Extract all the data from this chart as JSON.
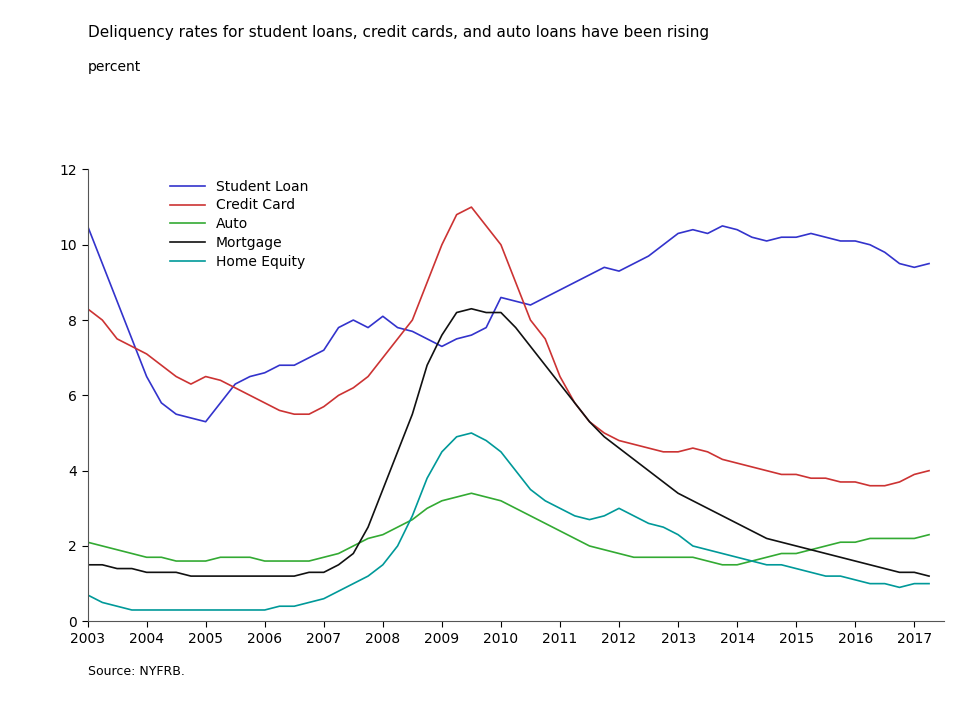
{
  "title": "Deliquency rates for student loans, credit cards, and auto loans have been rising",
  "ylabel": "percent",
  "source": "Source: NYFRB.",
  "xlim": [
    2003,
    2017.5
  ],
  "ylim": [
    0,
    12
  ],
  "yticks": [
    0,
    2,
    4,
    6,
    8,
    10,
    12
  ],
  "xticks": [
    2003,
    2004,
    2005,
    2006,
    2007,
    2008,
    2009,
    2010,
    2011,
    2012,
    2013,
    2014,
    2015,
    2016,
    2017
  ],
  "series": {
    "Student Loan": {
      "color": "#3333cc",
      "x": [
        2003.0,
        2003.25,
        2003.5,
        2003.75,
        2004.0,
        2004.25,
        2004.5,
        2004.75,
        2005.0,
        2005.25,
        2005.5,
        2005.75,
        2006.0,
        2006.25,
        2006.5,
        2006.75,
        2007.0,
        2007.25,
        2007.5,
        2007.75,
        2008.0,
        2008.25,
        2008.5,
        2008.75,
        2009.0,
        2009.25,
        2009.5,
        2009.75,
        2010.0,
        2010.25,
        2010.5,
        2010.75,
        2011.0,
        2011.25,
        2011.5,
        2011.75,
        2012.0,
        2012.25,
        2012.5,
        2012.75,
        2013.0,
        2013.25,
        2013.5,
        2013.75,
        2014.0,
        2014.25,
        2014.5,
        2014.75,
        2015.0,
        2015.25,
        2015.5,
        2015.75,
        2016.0,
        2016.25,
        2016.5,
        2016.75,
        2017.0,
        2017.25
      ],
      "y": [
        10.5,
        9.5,
        8.5,
        7.5,
        6.5,
        5.8,
        5.5,
        5.4,
        5.3,
        5.8,
        6.3,
        6.5,
        6.6,
        6.8,
        6.8,
        7.0,
        7.2,
        7.8,
        8.0,
        7.8,
        8.1,
        7.8,
        7.7,
        7.5,
        7.3,
        7.5,
        7.6,
        7.8,
        8.6,
        8.5,
        8.4,
        8.6,
        8.8,
        9.0,
        9.2,
        9.4,
        9.3,
        9.5,
        9.7,
        10.0,
        10.3,
        10.4,
        10.3,
        10.5,
        10.4,
        10.2,
        10.1,
        10.2,
        10.2,
        10.3,
        10.2,
        10.1,
        10.1,
        10.0,
        9.8,
        9.5,
        9.4,
        9.5
      ]
    },
    "Credit Card": {
      "color": "#cc3333",
      "x": [
        2003.0,
        2003.25,
        2003.5,
        2003.75,
        2004.0,
        2004.25,
        2004.5,
        2004.75,
        2005.0,
        2005.25,
        2005.5,
        2005.75,
        2006.0,
        2006.25,
        2006.5,
        2006.75,
        2007.0,
        2007.25,
        2007.5,
        2007.75,
        2008.0,
        2008.25,
        2008.5,
        2008.75,
        2009.0,
        2009.25,
        2009.5,
        2009.75,
        2010.0,
        2010.25,
        2010.5,
        2010.75,
        2011.0,
        2011.25,
        2011.5,
        2011.75,
        2012.0,
        2012.25,
        2012.5,
        2012.75,
        2013.0,
        2013.25,
        2013.5,
        2013.75,
        2014.0,
        2014.25,
        2014.5,
        2014.75,
        2015.0,
        2015.25,
        2015.5,
        2015.75,
        2016.0,
        2016.25,
        2016.5,
        2016.75,
        2017.0,
        2017.25
      ],
      "y": [
        8.3,
        8.0,
        7.5,
        7.3,
        7.1,
        6.8,
        6.5,
        6.3,
        6.5,
        6.4,
        6.2,
        6.0,
        5.8,
        5.6,
        5.5,
        5.5,
        5.7,
        6.0,
        6.2,
        6.5,
        7.0,
        7.5,
        8.0,
        9.0,
        10.0,
        10.8,
        11.0,
        10.5,
        10.0,
        9.0,
        8.0,
        7.5,
        6.5,
        5.8,
        5.3,
        5.0,
        4.8,
        4.7,
        4.6,
        4.5,
        4.5,
        4.6,
        4.5,
        4.3,
        4.2,
        4.1,
        4.0,
        3.9,
        3.9,
        3.8,
        3.8,
        3.7,
        3.7,
        3.6,
        3.6,
        3.7,
        3.9,
        4.0
      ]
    },
    "Auto": {
      "color": "#33aa33",
      "x": [
        2003.0,
        2003.25,
        2003.5,
        2003.75,
        2004.0,
        2004.25,
        2004.5,
        2004.75,
        2005.0,
        2005.25,
        2005.5,
        2005.75,
        2006.0,
        2006.25,
        2006.5,
        2006.75,
        2007.0,
        2007.25,
        2007.5,
        2007.75,
        2008.0,
        2008.25,
        2008.5,
        2008.75,
        2009.0,
        2009.25,
        2009.5,
        2009.75,
        2010.0,
        2010.25,
        2010.5,
        2010.75,
        2011.0,
        2011.25,
        2011.5,
        2011.75,
        2012.0,
        2012.25,
        2012.5,
        2012.75,
        2013.0,
        2013.25,
        2013.5,
        2013.75,
        2014.0,
        2014.25,
        2014.5,
        2014.75,
        2015.0,
        2015.25,
        2015.5,
        2015.75,
        2016.0,
        2016.25,
        2016.5,
        2016.75,
        2017.0,
        2017.25
      ],
      "y": [
        2.1,
        2.0,
        1.9,
        1.8,
        1.7,
        1.7,
        1.6,
        1.6,
        1.6,
        1.7,
        1.7,
        1.7,
        1.6,
        1.6,
        1.6,
        1.6,
        1.7,
        1.8,
        2.0,
        2.2,
        2.3,
        2.5,
        2.7,
        3.0,
        3.2,
        3.3,
        3.4,
        3.3,
        3.2,
        3.0,
        2.8,
        2.6,
        2.4,
        2.2,
        2.0,
        1.9,
        1.8,
        1.7,
        1.7,
        1.7,
        1.7,
        1.7,
        1.6,
        1.5,
        1.5,
        1.6,
        1.7,
        1.8,
        1.8,
        1.9,
        2.0,
        2.1,
        2.1,
        2.2,
        2.2,
        2.2,
        2.2,
        2.3
      ]
    },
    "Mortgage": {
      "color": "#111111",
      "x": [
        2003.0,
        2003.25,
        2003.5,
        2003.75,
        2004.0,
        2004.25,
        2004.5,
        2004.75,
        2005.0,
        2005.25,
        2005.5,
        2005.75,
        2006.0,
        2006.25,
        2006.5,
        2006.75,
        2007.0,
        2007.25,
        2007.5,
        2007.75,
        2008.0,
        2008.25,
        2008.5,
        2008.75,
        2009.0,
        2009.25,
        2009.5,
        2009.75,
        2010.0,
        2010.25,
        2010.5,
        2010.75,
        2011.0,
        2011.25,
        2011.5,
        2011.75,
        2012.0,
        2012.25,
        2012.5,
        2012.75,
        2013.0,
        2013.25,
        2013.5,
        2013.75,
        2014.0,
        2014.25,
        2014.5,
        2014.75,
        2015.0,
        2015.25,
        2015.5,
        2015.75,
        2016.0,
        2016.25,
        2016.5,
        2016.75,
        2017.0,
        2017.25
      ],
      "y": [
        1.5,
        1.5,
        1.4,
        1.4,
        1.3,
        1.3,
        1.3,
        1.2,
        1.2,
        1.2,
        1.2,
        1.2,
        1.2,
        1.2,
        1.2,
        1.3,
        1.3,
        1.5,
        1.8,
        2.5,
        3.5,
        4.5,
        5.5,
        6.8,
        7.6,
        8.2,
        8.3,
        8.2,
        8.2,
        7.8,
        7.3,
        6.8,
        6.3,
        5.8,
        5.3,
        4.9,
        4.6,
        4.3,
        4.0,
        3.7,
        3.4,
        3.2,
        3.0,
        2.8,
        2.6,
        2.4,
        2.2,
        2.1,
        2.0,
        1.9,
        1.8,
        1.7,
        1.6,
        1.5,
        1.4,
        1.3,
        1.3,
        1.2
      ]
    },
    "Home Equity": {
      "color": "#009999",
      "x": [
        2003.0,
        2003.25,
        2003.5,
        2003.75,
        2004.0,
        2004.25,
        2004.5,
        2004.75,
        2005.0,
        2005.25,
        2005.5,
        2005.75,
        2006.0,
        2006.25,
        2006.5,
        2006.75,
        2007.0,
        2007.25,
        2007.5,
        2007.75,
        2008.0,
        2008.25,
        2008.5,
        2008.75,
        2009.0,
        2009.25,
        2009.5,
        2009.75,
        2010.0,
        2010.25,
        2010.5,
        2010.75,
        2011.0,
        2011.25,
        2011.5,
        2011.75,
        2012.0,
        2012.25,
        2012.5,
        2012.75,
        2013.0,
        2013.25,
        2013.5,
        2013.75,
        2014.0,
        2014.25,
        2014.5,
        2014.75,
        2015.0,
        2015.25,
        2015.5,
        2015.75,
        2016.0,
        2016.25,
        2016.5,
        2016.75,
        2017.0,
        2017.25
      ],
      "y": [
        0.7,
        0.5,
        0.4,
        0.3,
        0.3,
        0.3,
        0.3,
        0.3,
        0.3,
        0.3,
        0.3,
        0.3,
        0.3,
        0.4,
        0.4,
        0.5,
        0.6,
        0.8,
        1.0,
        1.2,
        1.5,
        2.0,
        2.8,
        3.8,
        4.5,
        4.9,
        5.0,
        4.8,
        4.5,
        4.0,
        3.5,
        3.2,
        3.0,
        2.8,
        2.7,
        2.8,
        3.0,
        2.8,
        2.6,
        2.5,
        2.3,
        2.0,
        1.9,
        1.8,
        1.7,
        1.6,
        1.5,
        1.5,
        1.4,
        1.3,
        1.2,
        1.2,
        1.1,
        1.0,
        1.0,
        0.9,
        1.0,
        1.0
      ]
    }
  },
  "legend_order": [
    "Student Loan",
    "Credit Card",
    "Auto",
    "Mortgage",
    "Home Equity"
  ],
  "background_color": "#ffffff",
  "title_fontsize": 11,
  "label_fontsize": 10,
  "tick_fontsize": 10,
  "legend_fontsize": 10
}
